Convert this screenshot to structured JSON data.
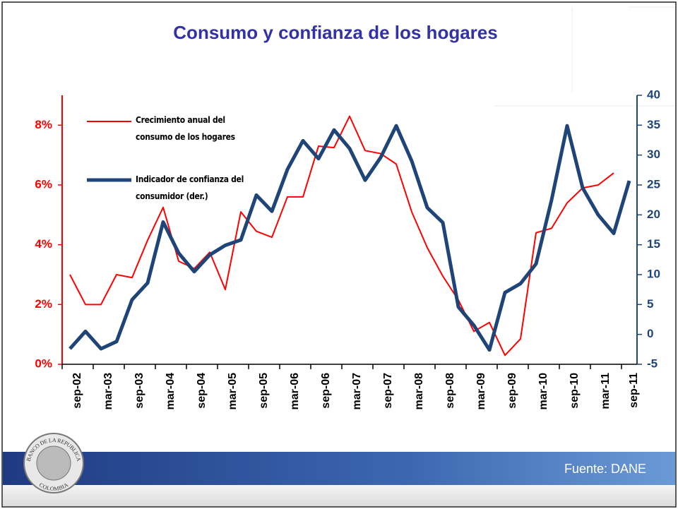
{
  "chart_data": {
    "type": "line",
    "title": "Consumo y confianza de los hogares",
    "categories": [
      "sep-02",
      null,
      "mar-03",
      null,
      "sep-03",
      null,
      "mar-04",
      null,
      "sep-04",
      null,
      "mar-05",
      null,
      "sep-05",
      null,
      "mar-06",
      null,
      "sep-06",
      null,
      "mar-07",
      null,
      "sep-07",
      null,
      "mar-08",
      null,
      "sep-08",
      null,
      "mar-09",
      null,
      "sep-09",
      null,
      "mar-10",
      null,
      "sep-10",
      null,
      "mar-11",
      null,
      "sep-11"
    ],
    "series": [
      {
        "name": "Crecimiento anual del consumo de los hogares",
        "color": "#ff0000",
        "axis": "y",
        "values": [
          3.0,
          2.0,
          2.0,
          3.0,
          2.9,
          4.15,
          5.25,
          3.45,
          3.2,
          3.75,
          2.5,
          5.1,
          4.45,
          4.25,
          5.6,
          5.6,
          7.3,
          7.25,
          8.3,
          7.15,
          7.05,
          6.7,
          5.1,
          3.9,
          2.95,
          2.15,
          1.1,
          1.4,
          0.3,
          0.85,
          4.4,
          4.55,
          5.4,
          5.9,
          6.0,
          6.4,
          null
        ]
      },
      {
        "name": "Indicador de confianza del consumidor (der.)",
        "color": "#1f4477",
        "axis": "y2",
        "values": [
          -2.4,
          0.5,
          -2.4,
          -1.2,
          5.8,
          8.6,
          18.8,
          13.6,
          10.5,
          13.3,
          14.9,
          15.8,
          23.3,
          20.6,
          27.6,
          32.4,
          29.4,
          34.2,
          31.1,
          25.8,
          29.6,
          34.9,
          29.0,
          21.2,
          18.7,
          4.6,
          1.5,
          -2.6,
          7.0,
          8.5,
          11.8,
          22.5,
          34.9,
          24.5,
          20.0,
          16.9,
          25.7
        ]
      }
    ],
    "ylim": [
      0,
      9
    ],
    "yticks": [
      {
        "value": 0,
        "label": "0%"
      },
      {
        "value": 2,
        "label": "2%"
      },
      {
        "value": 4,
        "label": "4%"
      },
      {
        "value": 6,
        "label": "6%"
      },
      {
        "value": 8,
        "label": "8%"
      }
    ],
    "y2lim": [
      -5,
      40
    ],
    "y2ticks": [
      -5,
      0,
      5,
      10,
      15,
      20,
      25,
      30,
      35,
      40
    ],
    "yaxis_color": "#ff0000",
    "y2axis_color": "#1f4477",
    "grid": false,
    "source": "Fuente: DANE",
    "logo_text": [
      "BANCO DE LA REPUBLICA",
      "COLOMBIA"
    ]
  }
}
